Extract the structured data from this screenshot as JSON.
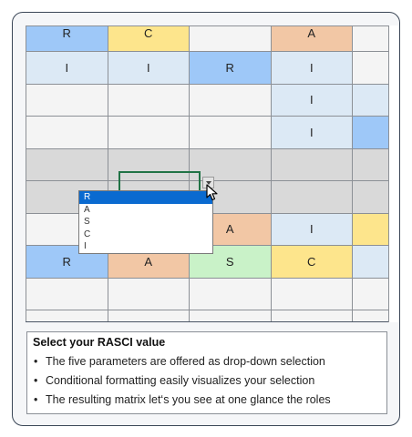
{
  "matrix": {
    "rows": [
      [
        {
          "v": "R",
          "c": "R"
        },
        {
          "v": "C",
          "c": "C"
        },
        {
          "v": "",
          "c": "W"
        },
        {
          "v": "A",
          "c": "A"
        },
        {
          "v": "",
          "c": "W"
        }
      ],
      [
        {
          "v": "I",
          "c": "I"
        },
        {
          "v": "I",
          "c": "I"
        },
        {
          "v": "R",
          "c": "R"
        },
        {
          "v": "I",
          "c": "I"
        },
        {
          "v": "",
          "c": "W"
        }
      ],
      [
        {
          "v": "",
          "c": "W"
        },
        {
          "v": "",
          "c": "W"
        },
        {
          "v": "",
          "c": "W"
        },
        {
          "v": "I",
          "c": "I"
        },
        {
          "v": "",
          "c": "I"
        }
      ],
      [
        {
          "v": "",
          "c": "W"
        },
        {
          "v": "",
          "c": "W"
        },
        {
          "v": "",
          "c": "W"
        },
        {
          "v": "I",
          "c": "I"
        },
        {
          "v": "",
          "c": "R"
        }
      ],
      [
        {
          "v": "",
          "c": "G"
        },
        {
          "v": "",
          "c": "G"
        },
        {
          "v": "",
          "c": "G"
        },
        {
          "v": "",
          "c": "G"
        },
        {
          "v": "",
          "c": "G"
        }
      ],
      [
        {
          "v": "",
          "c": "G"
        },
        {
          "v": "",
          "c": "G"
        },
        {
          "v": "",
          "c": "G"
        },
        {
          "v": "",
          "c": "G"
        },
        {
          "v": "",
          "c": "G"
        }
      ],
      [
        {
          "v": "",
          "c": "W"
        },
        {
          "v": "",
          "c": "W"
        },
        {
          "v": "A",
          "c": "A"
        },
        {
          "v": "I",
          "c": "I"
        },
        {
          "v": "",
          "c": "C"
        }
      ],
      [
        {
          "v": "R",
          "c": "R"
        },
        {
          "v": "A",
          "c": "A"
        },
        {
          "v": "S",
          "c": "S"
        },
        {
          "v": "C",
          "c": "C"
        },
        {
          "v": "",
          "c": "I"
        }
      ],
      [
        {
          "v": "",
          "c": "W"
        },
        {
          "v": "",
          "c": "W"
        },
        {
          "v": "",
          "c": "W"
        },
        {
          "v": "",
          "c": "W"
        },
        {
          "v": "",
          "c": "W"
        }
      ],
      [
        {
          "v": "",
          "c": "W"
        },
        {
          "v": "",
          "c": "W"
        },
        {
          "v": "",
          "c": "W"
        },
        {
          "v": "",
          "c": "W"
        },
        {
          "v": "",
          "c": "W"
        }
      ]
    ]
  },
  "dropdown": {
    "options": [
      "R",
      "A",
      "S",
      "C",
      "I"
    ],
    "selected": "R"
  },
  "info": {
    "title": "Select your RASCI value",
    "bullets": [
      "The five parameters are offered as drop-down selection",
      "Conditional formatting easily visualizes your selection",
      "The resulting matrix let‘s you see at one glance the roles"
    ]
  },
  "colors": {
    "R": "#9ec8f8",
    "A": "#f2c7a5",
    "S": "#c9f2c8",
    "C": "#fde58c",
    "I": "#dce9f5",
    "selection_highlight": "#0a6ad0",
    "active_cell_border": "#217346"
  }
}
